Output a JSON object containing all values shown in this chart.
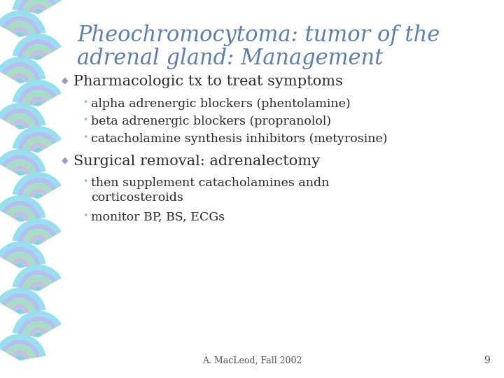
{
  "title_line1": "Pheochromocytoma: tumor of the",
  "title_line2": "adrenal gland: Management",
  "title_color": "#5b7fb5",
  "background_color": "#ffffff",
  "bullet1": "Pharmacologic tx to treat symptoms",
  "text_color": "#2a2a2a",
  "sub_bullets1": [
    "alpha adrenergic blockers (phentolamine)",
    "beta adrenergic blockers (propranolol)",
    "catacholamine synthesis inhibitors (metyrosine)"
  ],
  "bullet2": "Surgical removal: adrenalectomy",
  "sub_bullets2_line1": "then supplement catacholamines andn",
  "sub_bullets2_line2": "corticosteroids",
  "sub_bullets2_3": "monitor BP, BS, ECGs",
  "footer": "A. MacLeod, Fall 2002",
  "page_number": "9",
  "footer_color": "#555555",
  "diamond_color": "#9999cc",
  "sub_bullet_dot_color": "#88ccaa",
  "chain_colors": [
    "#88ddee",
    "#aabbee",
    "#99ddbb",
    "#bbbbdd",
    "#77ccdd"
  ],
  "title_fontsize": 22,
  "bullet_fontsize": 15,
  "sub_bullet_fontsize": 12.5
}
